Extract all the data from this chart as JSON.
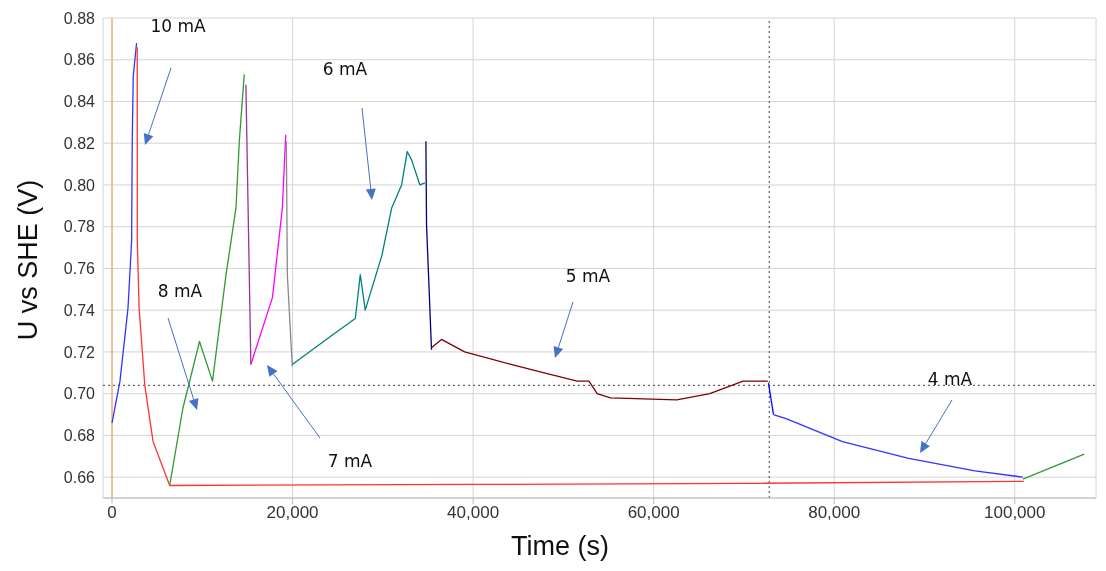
{
  "chart_data": {
    "type": "line",
    "xlabel": "Time (s)",
    "ylabel": "U vs SHE (V)",
    "xlim": [
      -1000,
      109000
    ],
    "xticks": [
      {
        "value": 0,
        "label": "0"
      },
      {
        "value": 20000,
        "label": "20,000"
      },
      {
        "value": 40000,
        "label": "40,000"
      },
      {
        "value": 60000,
        "label": "60,000"
      },
      {
        "value": 80000,
        "label": "80,000"
      },
      {
        "value": 100000,
        "label": "100,000"
      }
    ],
    "ylim": [
      0.65,
      0.88
    ],
    "yticks": [
      0.66,
      {
        "value": 0.68,
        "label": "0.68"
      },
      {
        "value": 0.7,
        "label": "0.70"
      },
      {
        "value": 0.72,
        "label": "0.72"
      },
      {
        "value": 0.74,
        "label": "0.74"
      },
      {
        "value": 0.76,
        "label": "0.76"
      },
      {
        "value": 0.78,
        "label": "0.78"
      },
      {
        "value": 0.8,
        "label": "0.80"
      },
      {
        "value": 0.82,
        "label": "0.82"
      },
      {
        "value": 0.84,
        "label": "0.84"
      },
      {
        "value": 0.86,
        "label": "0.86"
      },
      {
        "value": 0.88,
        "label": "0.88"
      }
    ],
    "grid": true,
    "marker": "none",
    "line_style": "solid",
    "series": [
      {
        "color": "#3333ff",
        "x": [
          0,
          880,
          1770,
          2170,
          2240,
          2350,
          2720
        ],
        "values": [
          0.686,
          0.706,
          0.741,
          0.773,
          0.821,
          0.852,
          0.868
        ]
      },
      {
        "color": "#ff3333",
        "x": [
          2790,
          2800,
          3000,
          3630,
          4550,
          6390,
          40000,
          70000,
          101000
        ],
        "values": [
          0.866,
          0.773,
          0.741,
          0.704,
          0.677,
          0.656,
          0.6565,
          0.657,
          0.658
        ]
      },
      {
        "color": "#339933",
        "x": [
          6390,
          7850,
          9690,
          11130,
          12630,
          13730,
          14100,
          14650
        ],
        "values": [
          0.656,
          0.693,
          0.725,
          0.706,
          0.757,
          0.789,
          0.821,
          0.853
        ]
      },
      {
        "color": "#993399",
        "x": [
          14830,
          15380
        ],
        "values": [
          0.848,
          0.714
        ]
      },
      {
        "color": "#ff00ff",
        "x": [
          15380,
          17770,
          18870,
          19240
        ],
        "values": [
          0.714,
          0.746,
          0.789,
          0.824
        ]
      },
      {
        "color": "#888888",
        "x": [
          19310,
          19420,
          19970
        ],
        "values": [
          0.821,
          0.757,
          0.713
        ]
      },
      {
        "color": "#008080",
        "x": [
          19970,
          24370,
          26950,
          27500,
          28050,
          29880,
          30980,
          32080,
          32700,
          33180,
          34110,
          34660
        ],
        "values": [
          0.714,
          0.728,
          0.736,
          0.757,
          0.74,
          0.766,
          0.789,
          0.8,
          0.816,
          0.812,
          0.8,
          0.801
        ]
      },
      {
        "color": "#000080",
        "x": [
          34770,
          34840,
          35390
        ],
        "values": [
          0.821,
          0.781,
          0.721
        ]
      },
      {
        "color": "#800000",
        "x": [
          35390,
          36490,
          39060,
          44200,
          47870,
          51540,
          52830,
          53740,
          55210,
          62560,
          66220,
          69900,
          72650
        ],
        "values": [
          0.722,
          0.726,
          0.72,
          0.714,
          0.71,
          0.706,
          0.706,
          0.7,
          0.698,
          0.697,
          0.7,
          0.706,
          0.706
        ]
      },
      {
        "color": "#0000ff",
        "x": [
          72720,
          73270
        ],
        "values": [
          0.705,
          0.69
        ]
      },
      {
        "color": "#3333ff",
        "x": [
          73270,
          74670,
          80910,
          88250,
          95590,
          100900
        ],
        "values": [
          0.69,
          0.688,
          0.677,
          0.669,
          0.663,
          0.66
        ]
      },
      {
        "color": "#339933",
        "x": [
          100900,
          107700
        ],
        "values": [
          0.659,
          0.671
        ]
      }
    ],
    "ref_lines": [
      {
        "axis": "x",
        "value": 0,
        "color": "#ff9933",
        "line_style": "solid"
      },
      {
        "axis": "x",
        "value": 72800,
        "color": "#404040",
        "line_style": "dotted"
      },
      {
        "axis": "y",
        "value": 0.704,
        "color": "#404040",
        "line_style": "dotted"
      }
    ],
    "annotations": [
      "10 mA",
      "8 mA",
      "7 mA",
      "6 mA",
      "5 mA",
      "4 mA"
    ]
  }
}
